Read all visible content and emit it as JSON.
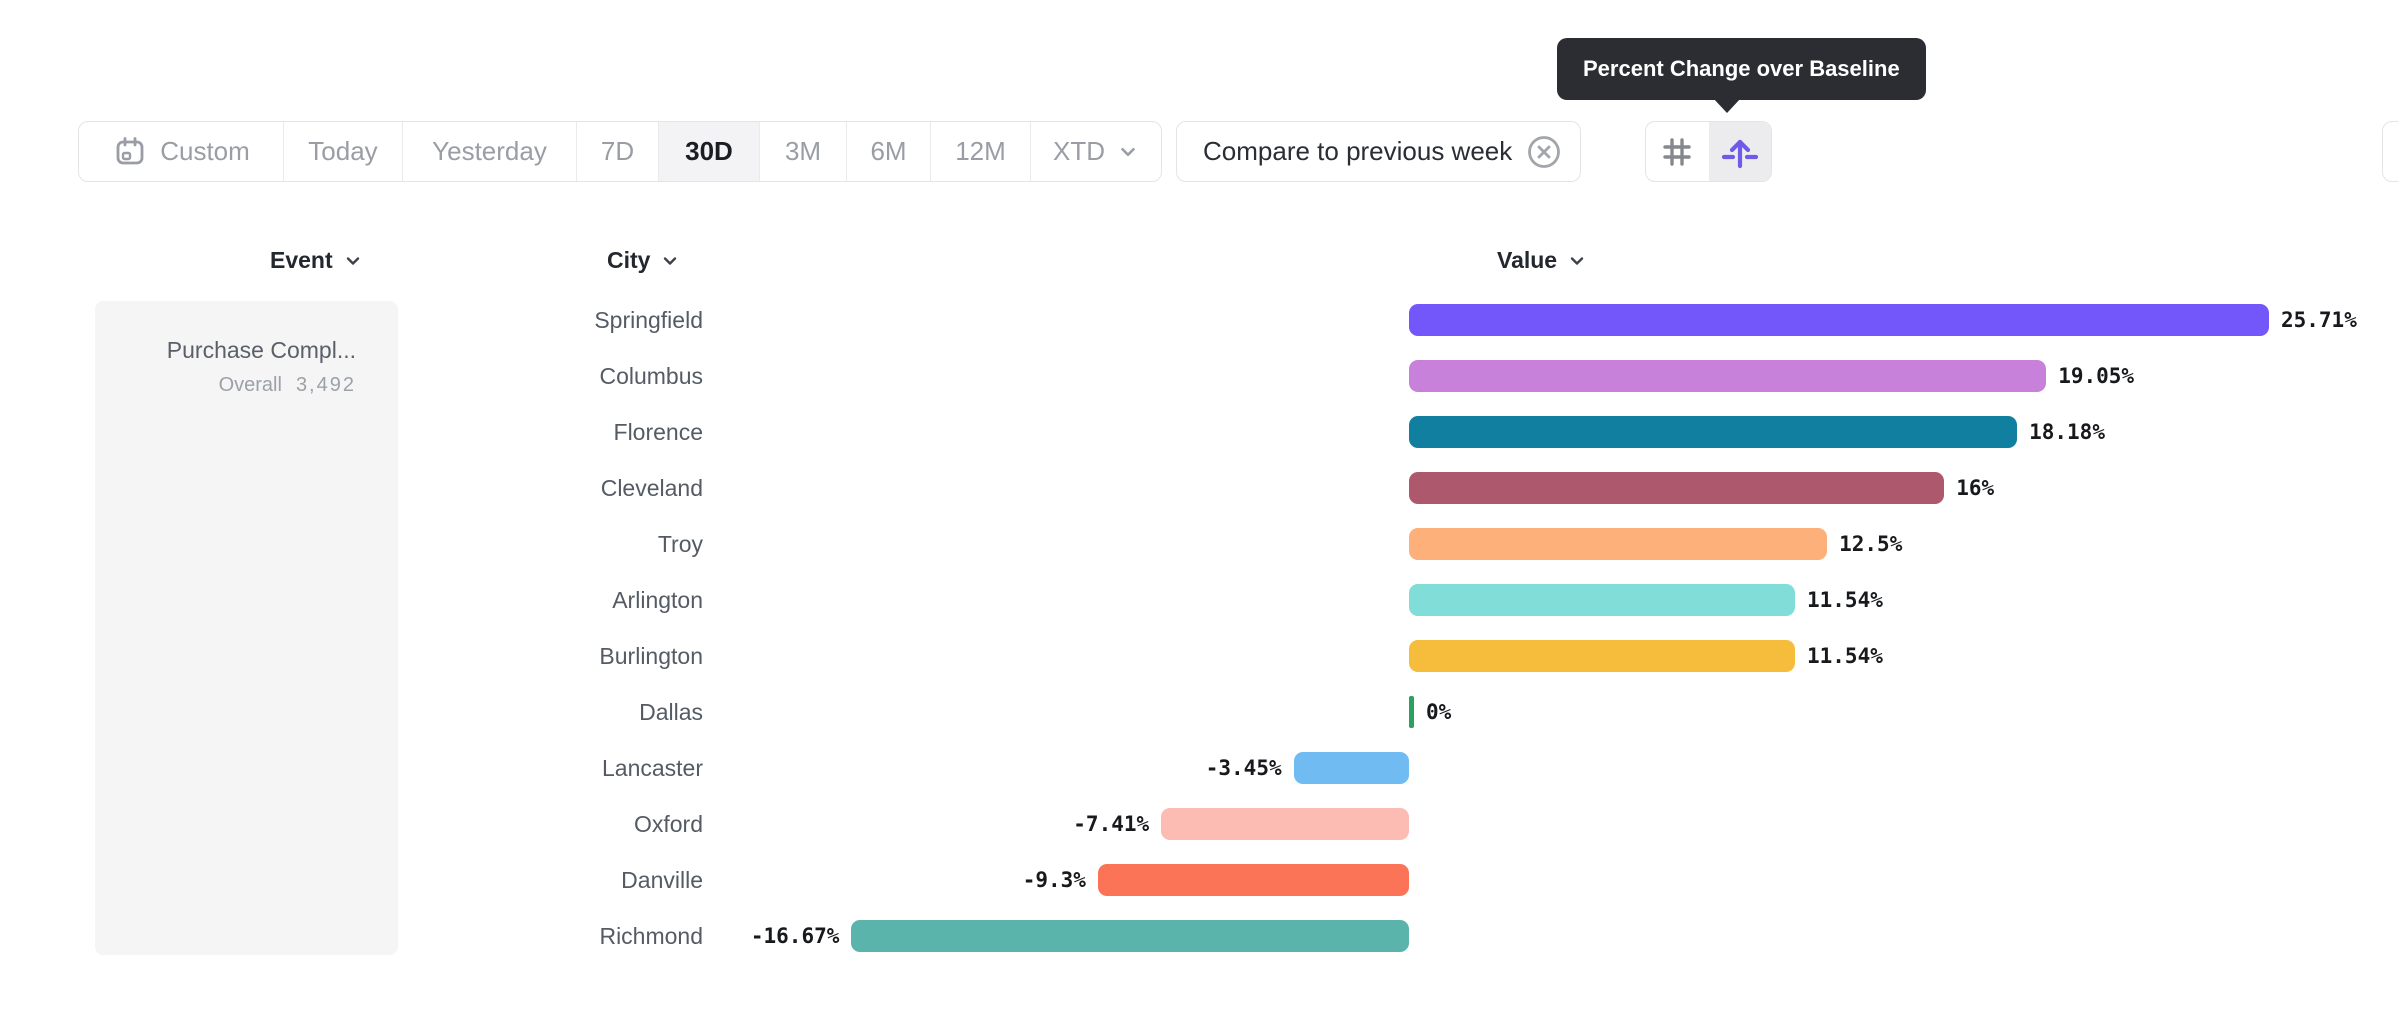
{
  "tooltip": {
    "text": "Percent Change over Baseline"
  },
  "toolbar": {
    "date_ranges": [
      {
        "label": "Custom",
        "icon": "calendar-icon",
        "selected": false
      },
      {
        "label": "Today",
        "selected": false
      },
      {
        "label": "Yesterday",
        "selected": false
      },
      {
        "label": "7D",
        "selected": false
      },
      {
        "label": "30D",
        "selected": true
      },
      {
        "label": "3M",
        "selected": false
      },
      {
        "label": "6M",
        "selected": false
      },
      {
        "label": "12M",
        "selected": false
      },
      {
        "label": "XTD",
        "has_chevron": true,
        "selected": false
      }
    ],
    "compare_chip": {
      "label": "Compare to previous week",
      "icon": "remove-circle-icon"
    },
    "view_toggle": [
      {
        "name": "grid-view",
        "icon": "grid-icon",
        "selected": false
      },
      {
        "name": "percent-change-view",
        "icon": "baseline-arrow-icon",
        "selected": true
      }
    ]
  },
  "columns": {
    "event": "Event",
    "city": "City",
    "value": "Value"
  },
  "event_panel": {
    "name": "Purchase Compl...",
    "overall_label": "Overall",
    "overall_value": "3,492"
  },
  "colors": {
    "accent_purple": "#6E5BE8",
    "tooltip_bg": "#2B2D33",
    "selected_range_bg": "#F3F3F5",
    "zero_tick_green": "#2BA05F"
  },
  "chart_data": {
    "type": "bar",
    "orientation": "horizontal",
    "unit": "%",
    "title": "Percent Change over Baseline",
    "baseline": 0,
    "xlim": [
      -16.67,
      25.71
    ],
    "legend": "none",
    "grid": false,
    "categories": [
      "Springfield",
      "Columbus",
      "Florence",
      "Cleveland",
      "Troy",
      "Arlington",
      "Burlington",
      "Dallas",
      "Lancaster",
      "Oxford",
      "Danville",
      "Richmond"
    ],
    "values": [
      25.71,
      19.05,
      18.18,
      16,
      12.5,
      11.54,
      11.54,
      0,
      -3.45,
      -7.41,
      -9.3,
      -16.67
    ],
    "value_labels": [
      "25.71%",
      "19.05%",
      "18.18%",
      "16%",
      "12.5%",
      "11.54%",
      "11.54%",
      "0%",
      "-3.45%",
      "-7.41%",
      "-9.3%",
      "-16.67%"
    ],
    "colors": [
      "#7457FA",
      "#C881DA",
      "#117F9F",
      "#AE586E",
      "#FDB07A",
      "#80DDD8",
      "#F6BD3D",
      "#2BA05F",
      "#6FBBF2",
      "#FCBBB3",
      "#FC7458",
      "#5BB4AB"
    ]
  }
}
